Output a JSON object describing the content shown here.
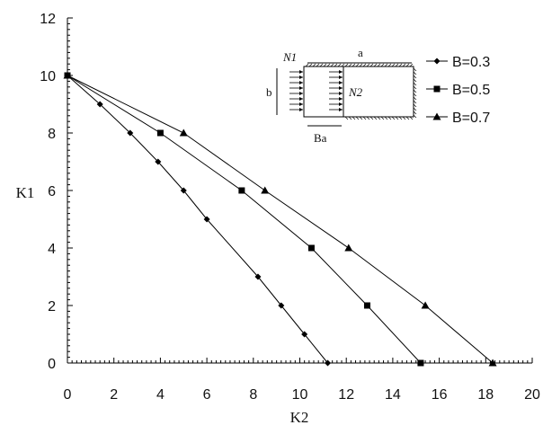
{
  "chart_data": {
    "type": "line",
    "xlabel": "K2",
    "ylabel": "K1",
    "xlim": [
      0,
      20
    ],
    "ylim": [
      0,
      12
    ],
    "xticks": [
      0,
      2,
      4,
      6,
      8,
      10,
      12,
      14,
      16,
      18,
      20
    ],
    "yticks": [
      0,
      2,
      4,
      6,
      8,
      10,
      12
    ],
    "grid": false,
    "legend_position": "top-right",
    "series": [
      {
        "name": "B=0.3",
        "marker": "diamond",
        "x": [
          0,
          1.4,
          2.7,
          3.9,
          5.0,
          6.0,
          8.2,
          9.2,
          10.2,
          11.2
        ],
        "y": [
          10,
          9,
          8,
          7,
          6,
          5,
          3,
          2,
          1,
          0
        ]
      },
      {
        "name": "B=0.5",
        "marker": "square",
        "x": [
          0,
          4.0,
          7.5,
          10.5,
          12.9,
          15.2
        ],
        "y": [
          10,
          8,
          6,
          4,
          2,
          0
        ]
      },
      {
        "name": "B=0.7",
        "marker": "triangle",
        "x": [
          0,
          5.0,
          8.5,
          12.1,
          15.4,
          18.3
        ],
        "y": [
          10,
          8,
          6,
          4,
          2,
          0
        ]
      }
    ],
    "inset": {
      "label_n1": "N1",
      "label_n2": "N2",
      "label_a": "a",
      "label_b": "b",
      "label_ba": "Ba"
    }
  }
}
